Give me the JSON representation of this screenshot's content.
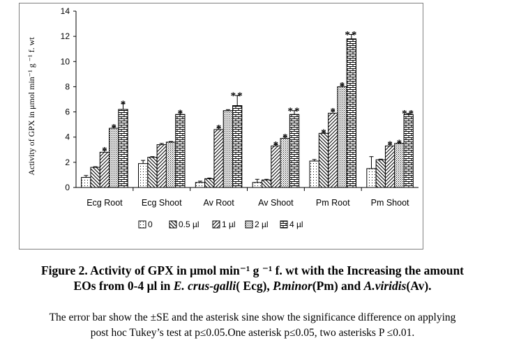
{
  "chart_data": {
    "type": "bar",
    "ylabel": "Activity of  GPX in μmol min⁻¹  g ⁻¹ f. wt",
    "ylim": [
      0,
      14
    ],
    "yticks": [
      0,
      2,
      4,
      6,
      8,
      10,
      12,
      14
    ],
    "categories": [
      "Ecg Root",
      "Ecg Shoot",
      "Av Root",
      "Av Shoot",
      "Pm Root",
      "Pm Shoot"
    ],
    "series": [
      {
        "name": "0",
        "pattern": "dots",
        "values": [
          0.8,
          1.9,
          0.4,
          0.4,
          2.1,
          1.5
        ],
        "errors": [
          0.15,
          0.25,
          0.1,
          0.25,
          0.12,
          0.95
        ],
        "stars": [
          "",
          "",
          "",
          "",
          "",
          ""
        ]
      },
      {
        "name": "0.5 µl",
        "pattern": "diag-down",
        "values": [
          1.6,
          2.4,
          0.7,
          0.6,
          4.3,
          2.2
        ],
        "errors": [
          0.05,
          0.05,
          0.05,
          0.05,
          0.08,
          0.05
        ],
        "stars": [
          "",
          "",
          "",
          "",
          "*",
          ""
        ]
      },
      {
        "name": "1 µl",
        "pattern": "diag-up",
        "values": [
          2.8,
          3.4,
          4.6,
          3.3,
          5.9,
          3.3
        ],
        "errors": [
          0.15,
          0.1,
          0.12,
          0.1,
          0.15,
          0.12
        ],
        "stars": [
          "*",
          "",
          "*",
          "*",
          "*",
          "*"
        ]
      },
      {
        "name": "2 µl",
        "pattern": "dense-dots",
        "values": [
          4.7,
          3.6,
          6.1,
          3.9,
          8.0,
          3.5
        ],
        "errors": [
          0.1,
          0.05,
          0.08,
          0.1,
          0.1,
          0.05
        ],
        "stars": [
          "*",
          "",
          "",
          "*",
          "*",
          "*"
        ]
      },
      {
        "name": "4 µl",
        "pattern": "bricks",
        "values": [
          6.2,
          5.8,
          6.5,
          5.8,
          11.8,
          5.8
        ],
        "errors": [
          0.45,
          0.12,
          0.8,
          0.3,
          0.35,
          0.08
        ],
        "stars": [
          "*",
          "*",
          "**",
          "**",
          "**",
          "**"
        ]
      }
    ],
    "legend_position": "bottom"
  },
  "caption": {
    "figure_label": "Figure  2.",
    "title_line1": "Activity of GPX in μmol min⁻¹  g ⁻¹ f. wt with the Increasing the amount",
    "title_line2_a": "EOs from 0-4 μl in ",
    "species1": "E. crus-galli",
    "title_line2_b": "( Ecg), ",
    "species2": "P.minor",
    "title_line2_c": "(Pm)  and ",
    "species3": "A.viridis",
    "title_line2_d": "(Av).",
    "note_line1": "The error bar show the ±SE and the asterisk sine show the significance difference on applying",
    "note_line2": "post hoc Tukey’s test at p≤0.05.One asterisk p≤0.05, two asterisks P ≤0.01."
  },
  "colors": {
    "ink": "#000000",
    "frame": "#7f7f7f",
    "fill": "#ffffff"
  }
}
